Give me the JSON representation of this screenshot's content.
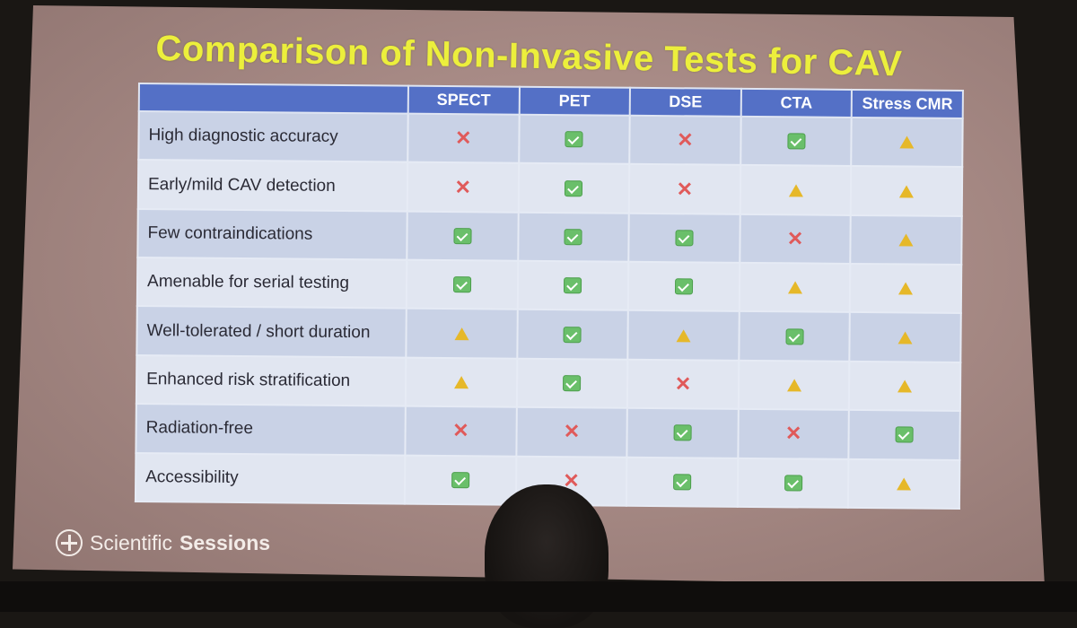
{
  "slide": {
    "title": "Comparison of Non-Invasive Tests for CAV",
    "brand_light": "Scientific",
    "brand_bold": "Sessions"
  },
  "table": {
    "columns": [
      "SPECT",
      "PET",
      "DSE",
      "CTA",
      "Stress CMR"
    ],
    "rows": [
      {
        "label": "High diagnostic accuracy",
        "cells": [
          "no",
          "ok",
          "no",
          "ok",
          "warn"
        ]
      },
      {
        "label": "Early/mild CAV detection",
        "cells": [
          "no",
          "ok",
          "no",
          "warn",
          "warn"
        ]
      },
      {
        "label": "Few contraindications",
        "cells": [
          "ok",
          "ok",
          "ok",
          "no",
          "warn"
        ]
      },
      {
        "label": "Amenable for serial testing",
        "cells": [
          "ok",
          "ok",
          "ok",
          "warn",
          "warn"
        ]
      },
      {
        "label": "Well-tolerated / short duration",
        "cells": [
          "warn",
          "ok",
          "warn",
          "ok",
          "warn"
        ]
      },
      {
        "label": "Enhanced risk stratification",
        "cells": [
          "warn",
          "ok",
          "no",
          "warn",
          "warn"
        ]
      },
      {
        "label": "Radiation-free",
        "cells": [
          "no",
          "no",
          "ok",
          "no",
          "ok"
        ]
      },
      {
        "label": "Accessibility",
        "cells": [
          "ok",
          "no",
          "ok",
          "ok",
          "warn"
        ]
      }
    ]
  },
  "icons": {
    "ok": "check-icon",
    "no": "x-icon",
    "warn": "warning-icon"
  },
  "colors": {
    "title": "#ecef3c",
    "header": "#5470c6",
    "check": "#6abf6a",
    "x": "#e05a5a",
    "warning": "#e6b829"
  }
}
